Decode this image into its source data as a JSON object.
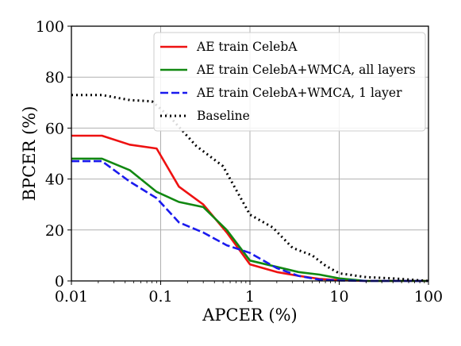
{
  "chart_data": {
    "type": "line",
    "xlabel": "APCER (%)",
    "ylabel": "BPCER (%)",
    "xscale": "log",
    "xlim": [
      0.01,
      100
    ],
    "ylim": [
      0,
      100
    ],
    "x_ticks": [
      0.01,
      0.1,
      1,
      10,
      100
    ],
    "x_tick_labels": [
      "0.01",
      "0.1",
      "1",
      "10",
      "100"
    ],
    "y_ticks": [
      0,
      20,
      40,
      60,
      80,
      100
    ],
    "y_tick_labels": [
      "0",
      "20",
      "40",
      "60",
      "80",
      "100"
    ],
    "grid": true,
    "legend_position": "top-right",
    "series": [
      {
        "name": "AE train CelebA",
        "color": "#ee1111",
        "dash": "solid",
        "x": [
          0.01,
          0.022,
          0.045,
          0.09,
          0.16,
          0.3,
          0.55,
          1.0,
          2.0,
          3.5,
          6,
          10,
          20,
          100
        ],
        "y": [
          57,
          57,
          53.5,
          52,
          37,
          30,
          19,
          6.5,
          3.5,
          2,
          0.8,
          0.3,
          0,
          0
        ]
      },
      {
        "name": "AE train CelebA+WMCA, all layers",
        "color": "#118811",
        "dash": "solid",
        "x": [
          0.01,
          0.022,
          0.045,
          0.09,
          0.16,
          0.3,
          0.55,
          1.0,
          2.0,
          3.5,
          6,
          10,
          20,
          100
        ],
        "y": [
          48,
          48,
          43.5,
          35,
          31,
          29,
          20,
          8,
          5.5,
          3.5,
          2.5,
          1,
          0,
          0
        ]
      },
      {
        "name": "AE train CelebA+WMCA, 1 layer",
        "color": "#1a1aee",
        "dash": "dashed",
        "x": [
          0.01,
          0.022,
          0.045,
          0.09,
          0.16,
          0.3,
          0.55,
          1.0,
          2.0,
          3.5,
          6,
          10,
          20,
          100
        ],
        "y": [
          47,
          47,
          39,
          32.5,
          23,
          19,
          14,
          11,
          5,
          2,
          0.5,
          0.2,
          0,
          0
        ]
      },
      {
        "name": "Baseline",
        "color": "#000000",
        "dash": "dotted",
        "x": [
          0.01,
          0.022,
          0.045,
          0.08,
          0.13,
          0.25,
          0.5,
          1.0,
          1.8,
          3.0,
          5.0,
          7.0,
          10,
          20,
          40,
          100
        ],
        "y": [
          73,
          73,
          71,
          70.5,
          64,
          53,
          45,
          26,
          21,
          13,
          10,
          6,
          3,
          1.5,
          1,
          0
        ]
      }
    ]
  }
}
